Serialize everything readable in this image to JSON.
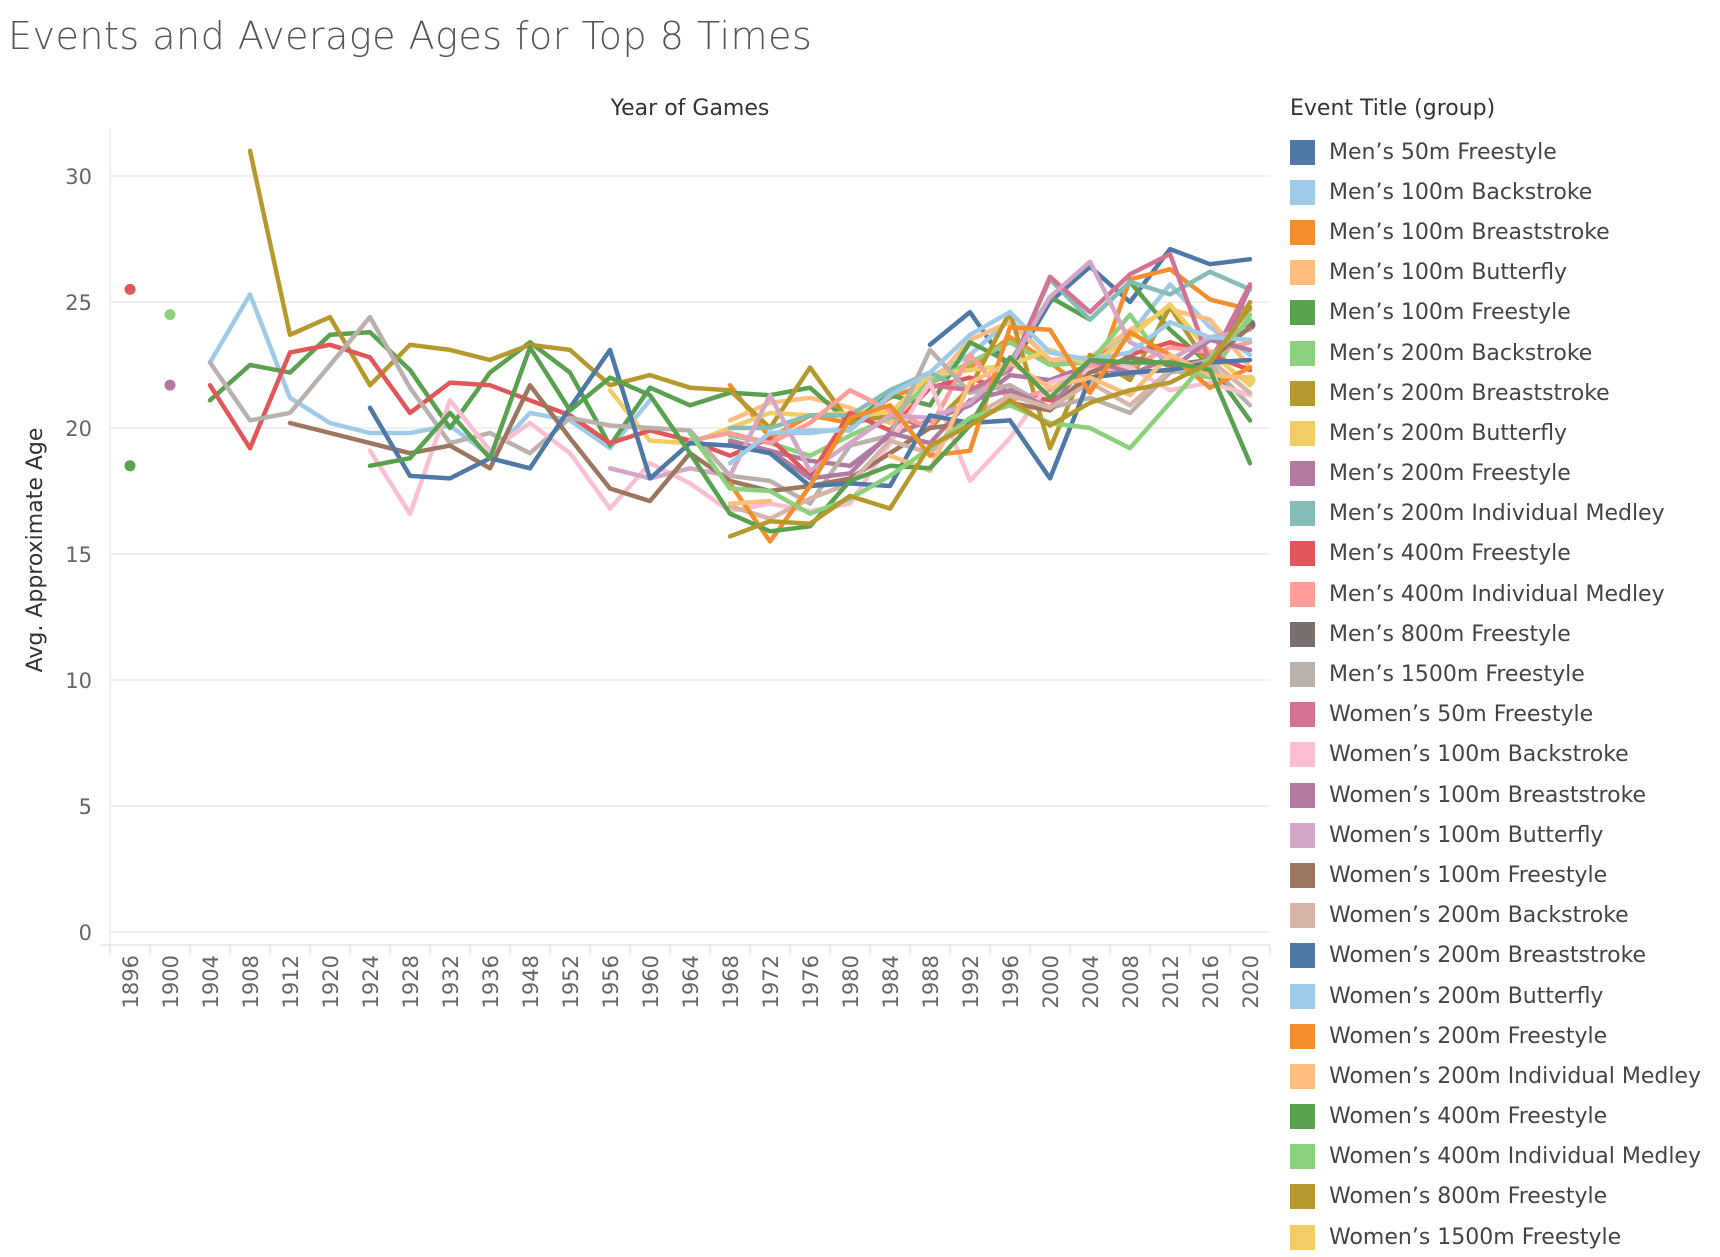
{
  "title": "Events and Average Ages for Top 8 Times",
  "chart_data": {
    "type": "line",
    "title": "Events and Average Ages for Top 8 Times",
    "xlabel": "Year of Games",
    "ylabel": "Avg. Approximate Age",
    "ylim": [
      0,
      32
    ],
    "yticks": [
      0,
      5,
      10,
      15,
      20,
      25,
      30
    ],
    "categories": [
      "1896",
      "1900",
      "1904",
      "1908",
      "1912",
      "1920",
      "1924",
      "1928",
      "1932",
      "1936",
      "1948",
      "1952",
      "1956",
      "1960",
      "1964",
      "1968",
      "1972",
      "1976",
      "1980",
      "1984",
      "1988",
      "1992",
      "1996",
      "2000",
      "2004",
      "2008",
      "2012",
      "2016",
      "2020"
    ],
    "grid": true,
    "legend_title": "Event Title (group)",
    "legend_position": "right",
    "series": [
      {
        "name": "Men’s 50m Freestyle",
        "color": "#4e79a7",
        "values": [
          null,
          null,
          null,
          null,
          null,
          null,
          null,
          null,
          null,
          null,
          null,
          null,
          null,
          null,
          null,
          null,
          null,
          null,
          null,
          null,
          23.3,
          24.6,
          22.3,
          25.0,
          26.4,
          25.0,
          27.1,
          26.5,
          26.7
        ]
      },
      {
        "name": "Men’s 100m Backstroke",
        "color": "#a0cbe8",
        "values": [
          null,
          null,
          22.6,
          25.3,
          21.2,
          20.2,
          19.8,
          19.8,
          20.1,
          18.9,
          20.6,
          20.3,
          19.2,
          21.1,
          null,
          null,
          19.8,
          19.8,
          20.0,
          21.5,
          22.0,
          22.9,
          24.3,
          22.7,
          22.6,
          23.7,
          25.7,
          24.0,
          22.9
        ]
      },
      {
        "name": "Men’s 100m Breaststroke",
        "color": "#f28e2b",
        "values": [
          null,
          null,
          null,
          null,
          null,
          null,
          null,
          null,
          null,
          null,
          null,
          null,
          null,
          null,
          null,
          21.7,
          19.6,
          20.5,
          20.2,
          21.2,
          21.8,
          22.4,
          23.6,
          22.6,
          21.4,
          25.9,
          26.3,
          25.1,
          24.7
        ]
      },
      {
        "name": "Men’s 100m Butterfly",
        "color": "#ffbe7d",
        "values": [
          null,
          null,
          null,
          null,
          null,
          null,
          null,
          null,
          null,
          null,
          null,
          null,
          null,
          null,
          null,
          20.3,
          21.0,
          21.2,
          20.8,
          20.2,
          21.7,
          23.5,
          24.2,
          22.7,
          22.8,
          23.9,
          24.7,
          24.3,
          22.4
        ]
      },
      {
        "name": "Men’s 100m Freestyle",
        "color": "#59a14f",
        "values": [
          null,
          null,
          21.1,
          22.5,
          22.2,
          23.7,
          23.8,
          22.3,
          20.0,
          22.2,
          23.4,
          22.2,
          19.3,
          21.6,
          20.9,
          21.4,
          21.3,
          21.6,
          20.2,
          21.3,
          20.9,
          23.4,
          22.6,
          25.2,
          24.3,
          25.8,
          23.9,
          22.5,
          20.3
        ]
      },
      {
        "name": "Men’s 200m Backstroke",
        "color": "#8cd17d",
        "values": [
          null,
          24.5,
          null,
          null,
          null,
          null,
          null,
          null,
          null,
          null,
          null,
          null,
          null,
          null,
          null,
          19.7,
          19.4,
          18.9,
          19.7,
          20.4,
          21.8,
          22.6,
          23.4,
          22.5,
          22.6,
          24.5,
          22.3,
          22.0,
          24.5
        ]
      },
      {
        "name": "Men’s 200m Breaststroke",
        "color": "#b6992d",
        "values": [
          null,
          null,
          null,
          31.0,
          23.7,
          24.4,
          21.7,
          23.3,
          23.1,
          22.7,
          23.3,
          23.1,
          21.7,
          22.1,
          21.6,
          21.5,
          20.0,
          22.4,
          20.2,
          20.5,
          20.0,
          21.6,
          24.6,
          19.2,
          22.9,
          21.9,
          24.8,
          22.4,
          25.0
        ]
      },
      {
        "name": "Men’s 200m Butterfly",
        "color": "#f1ce63",
        "values": [
          null,
          null,
          null,
          null,
          null,
          null,
          null,
          null,
          null,
          null,
          null,
          null,
          21.5,
          19.5,
          19.4,
          20.0,
          20.6,
          20.5,
          20.6,
          20.6,
          22.1,
          22.3,
          22.5,
          23.1,
          22.5,
          23.6,
          24.9,
          23.0,
          21.7
        ]
      },
      {
        "name": "Men’s 200m Freestyle",
        "color": "#b07aa1",
        "values": [
          null,
          21.7,
          null,
          null,
          null,
          null,
          null,
          null,
          null,
          null,
          null,
          null,
          null,
          null,
          null,
          19.4,
          19.1,
          18.7,
          18.5,
          19.7,
          20.3,
          20.9,
          22.1,
          21.9,
          22.5,
          22.1,
          22.8,
          22.1,
          25.6
        ]
      },
      {
        "name": "Men’s 200m Individual Medley",
        "color": "#86bcb6",
        "values": [
          null,
          null,
          null,
          null,
          null,
          null,
          null,
          null,
          null,
          null,
          null,
          null,
          null,
          null,
          null,
          20.0,
          20.0,
          20.5,
          20.5,
          21.5,
          22.2,
          21.4,
          22.4,
          25.9,
          24.3,
          25.8,
          25.3,
          26.2,
          25.5
        ]
      },
      {
        "name": "Men’s 400m Freestyle",
        "color": "#e15759",
        "values": [
          25.5,
          null,
          21.7,
          19.2,
          23.0,
          23.3,
          22.8,
          20.6,
          21.8,
          21.7,
          21.1,
          20.5,
          19.4,
          19.9,
          19.5,
          18.9,
          19.6,
          18.1,
          20.6,
          19.9,
          21.6,
          22.0,
          21.4,
          21.1,
          21.8,
          22.9,
          23.4,
          22.9,
          22.3
        ]
      },
      {
        "name": "Men’s 400m Individual Medley",
        "color": "#ff9d9a",
        "values": [
          null,
          null,
          null,
          null,
          null,
          null,
          null,
          null,
          null,
          null,
          null,
          null,
          null,
          null,
          19.5,
          19.8,
          19.4,
          20.2,
          21.5,
          20.7,
          20.0,
          22.9,
          21.1,
          21.5,
          22.5,
          22.4,
          23.2,
          23.0,
          23.4
        ]
      },
      {
        "name": "Men’s 800m Freestyle",
        "color": "#79706e",
        "values": [
          null,
          null,
          null,
          null,
          null,
          null,
          null,
          null,
          null,
          null,
          null,
          null,
          null,
          null,
          null,
          null,
          null,
          null,
          null,
          null,
          null,
          null,
          null,
          null,
          null,
          null,
          null,
          null,
          24.1
        ]
      },
      {
        "name": "Men’s 1500m Freestyle",
        "color": "#bab0ac",
        "values": [
          null,
          null,
          22.6,
          20.3,
          20.6,
          22.5,
          24.4,
          21.6,
          19.4,
          19.8,
          19.0,
          20.4,
          20.1,
          20.0,
          19.9,
          18.1,
          17.9,
          17.0,
          19.3,
          19.7,
          23.1,
          21.4,
          21.7,
          20.8,
          21.2,
          20.6,
          22.2,
          22.5,
          20.9
        ]
      },
      {
        "name": "Women’s 50m Freestyle",
        "color": "#d37295",
        "values": [
          null,
          null,
          null,
          null,
          null,
          null,
          null,
          null,
          null,
          null,
          null,
          null,
          null,
          null,
          null,
          null,
          null,
          null,
          null,
          null,
          21.7,
          21.5,
          22.3,
          26.0,
          24.6,
          26.1,
          26.9,
          22.6,
          25.7
        ]
      },
      {
        "name": "Women’s 100m Backstroke",
        "color": "#fabfd2",
        "values": [
          null,
          null,
          null,
          null,
          null,
          null,
          19.1,
          16.6,
          21.1,
          19.1,
          20.2,
          19.0,
          16.8,
          18.6,
          17.8,
          16.7,
          17.0,
          16.7,
          17.0,
          19.4,
          21.8,
          17.9,
          19.6,
          21.8,
          22.3,
          22.4,
          21.5,
          21.8,
          21.3
        ]
      },
      {
        "name": "Women’s 100m Breaststroke",
        "color": "#b07aa1",
        "values": [
          null,
          null,
          null,
          null,
          null,
          null,
          null,
          null,
          null,
          null,
          null,
          null,
          null,
          null,
          null,
          19.5,
          19.1,
          18.0,
          18.2,
          19.8,
          19.4,
          21.1,
          21.5,
          20.8,
          22.7,
          22.2,
          22.3,
          23.5,
          23.1
        ]
      },
      {
        "name": "Women’s 100m Butterfly",
        "color": "#d4a6c8",
        "values": [
          null,
          null,
          null,
          null,
          null,
          null,
          null,
          null,
          null,
          null,
          null,
          null,
          18.4,
          18.0,
          18.4,
          18.1,
          21.3,
          18.3,
          19.4,
          20.5,
          20.4,
          21.0,
          22.5,
          25.2,
          26.6,
          23.4,
          22.7,
          23.6,
          23.9
        ]
      },
      {
        "name": "Women’s 100m Freestyle",
        "color": "#9d7660",
        "values": [
          null,
          null,
          null,
          null,
          20.2,
          19.8,
          19.4,
          19.0,
          19.3,
          18.4,
          21.7,
          19.6,
          17.6,
          17.1,
          19.0,
          17.9,
          17.5,
          17.7,
          18.0,
          19.0,
          20.0,
          20.2,
          21.0,
          20.7,
          22.2,
          22.8,
          22.5,
          22.7,
          24.0
        ]
      },
      {
        "name": "Women’s 200m Backstroke",
        "color": "#d7b5a6",
        "values": [
          null,
          null,
          null,
          null,
          null,
          null,
          null,
          null,
          null,
          null,
          null,
          null,
          null,
          null,
          null,
          16.9,
          16.4,
          17.2,
          17.8,
          19.5,
          19.0,
          20.4,
          21.3,
          20.8,
          21.8,
          20.9,
          22.3,
          22.7,
          21.4
        ]
      },
      {
        "name": "Women’s 200m Breaststroke",
        "color": "#4e79a7",
        "values": [
          null,
          null,
          null,
          null,
          null,
          null,
          20.8,
          18.1,
          18.0,
          18.8,
          18.4,
          20.8,
          23.1,
          18.0,
          19.4,
          19.3,
          19.0,
          17.7,
          17.8,
          17.7,
          20.5,
          20.2,
          20.3,
          18.0,
          22.0,
          22.2,
          22.3,
          22.6,
          22.7
        ]
      },
      {
        "name": "Women’s 200m Butterfly",
        "color": "#a0cbe8",
        "values": [
          null,
          null,
          null,
          null,
          null,
          null,
          null,
          null,
          null,
          null,
          null,
          null,
          null,
          null,
          null,
          18.6,
          19.8,
          19.9,
          19.9,
          21.3,
          22.2,
          23.7,
          24.6,
          23.0,
          22.7,
          23.0,
          24.2,
          23.6,
          23.5
        ]
      },
      {
        "name": "Women’s 200m Freestyle",
        "color": "#f28e2b",
        "values": [
          null,
          null,
          null,
          null,
          null,
          null,
          null,
          null,
          null,
          null,
          null,
          null,
          null,
          null,
          null,
          17.8,
          15.5,
          17.7,
          20.4,
          20.9,
          18.9,
          19.1,
          24.0,
          23.9,
          21.4,
          23.8,
          22.9,
          21.6,
          22.4
        ]
      },
      {
        "name": "Women’s 200m Individual Medley",
        "color": "#ffbe7d",
        "values": [
          null,
          null,
          null,
          null,
          null,
          null,
          null,
          null,
          null,
          null,
          null,
          null,
          null,
          null,
          null,
          17.0,
          17.1,
          null,
          null,
          18.9,
          18.3,
          21.8,
          22.6,
          21.6,
          22.0,
          21.3,
          22.9,
          22.1,
          22.0
        ]
      },
      {
        "name": "Women’s 400m Freestyle",
        "color": "#59a14f",
        "values": [
          18.5,
          null,
          null,
          null,
          null,
          null,
          18.5,
          18.8,
          20.6,
          18.8,
          23.2,
          20.7,
          22.0,
          21.3,
          19.0,
          16.6,
          15.9,
          16.1,
          17.9,
          18.5,
          18.4,
          20.1,
          22.8,
          21.2,
          22.7,
          22.6,
          22.6,
          22.3,
          18.6
        ]
      },
      {
        "name": "Women’s 400m Individual Medley",
        "color": "#8cd17d",
        "values": [
          null,
          null,
          null,
          null,
          null,
          null,
          null,
          null,
          null,
          null,
          null,
          null,
          null,
          null,
          19.8,
          17.6,
          17.5,
          16.6,
          17.2,
          18.1,
          19.2,
          20.4,
          20.9,
          20.2,
          20.0,
          19.2,
          21.0,
          22.8,
          24.3
        ]
      },
      {
        "name": "Women’s 800m Freestyle",
        "color": "#b6992d",
        "values": [
          null,
          null,
          null,
          null,
          null,
          null,
          null,
          null,
          null,
          null,
          null,
          null,
          null,
          null,
          null,
          15.7,
          16.3,
          16.2,
          17.3,
          16.8,
          19.3,
          20.1,
          21.1,
          20.1,
          21.0,
          21.5,
          21.8,
          22.6,
          24.8
        ]
      },
      {
        "name": "Women’s 1500m Freestyle",
        "color": "#f1ce63",
        "values": [
          null,
          null,
          null,
          null,
          null,
          null,
          null,
          null,
          null,
          null,
          null,
          null,
          null,
          null,
          null,
          null,
          null,
          null,
          null,
          null,
          null,
          null,
          null,
          null,
          null,
          null,
          null,
          null,
          21.9
        ]
      }
    ]
  }
}
